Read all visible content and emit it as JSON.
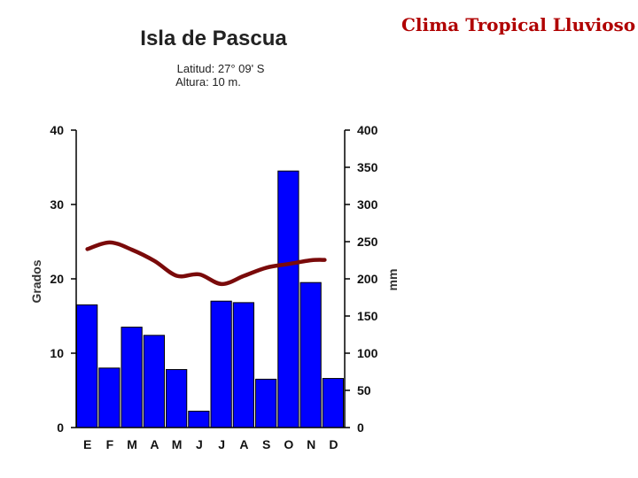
{
  "header": {
    "title": "Clima Tropical Lluvioso"
  },
  "chart_data": {
    "type": "bar",
    "title": "Isla de Pascua",
    "subtitle_lines": [
      "Latitud: 27° 09' S",
      "Altura: 10 m."
    ],
    "categories": [
      "E",
      "F",
      "M",
      "A",
      "M",
      "J",
      "J",
      "A",
      "S",
      "O",
      "N",
      "D"
    ],
    "ylabel": "Grados",
    "y2label": "mm",
    "ylim": [
      0,
      40
    ],
    "y2lim": [
      0,
      400
    ],
    "yticks": [
      0,
      10,
      20,
      30,
      40
    ],
    "y2ticks": [
      0,
      50,
      100,
      150,
      200,
      250,
      300,
      350,
      400
    ],
    "series": [
      {
        "type": "bar",
        "axis": "right",
        "color": "#0000ff",
        "values": [
          165,
          80,
          135,
          124,
          78,
          22,
          170,
          168,
          65,
          345,
          195,
          66
        ]
      },
      {
        "type": "line",
        "axis": "left",
        "color": "#7a0a0a",
        "values": [
          24.0,
          24.9,
          23.9,
          22.4,
          20.4,
          20.6,
          19.3,
          20.4,
          21.5,
          22.0,
          22.5,
          null
        ],
        "x_positions": [
          "E",
          "F",
          "M",
          "A",
          "M",
          "J",
          "J",
          "A",
          "S",
          "O",
          "N",
          "D"
        ]
      }
    ],
    "grid": false
  }
}
